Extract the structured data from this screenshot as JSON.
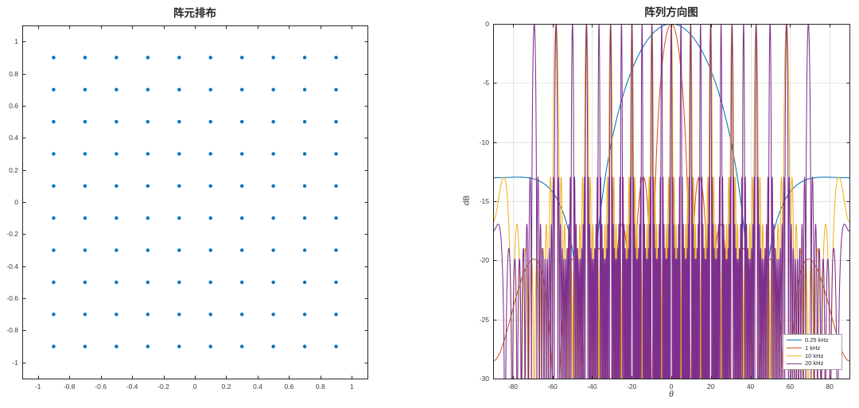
{
  "window": {
    "background": "#ffffff",
    "axis_color": "#262626",
    "grid_color": "#e6e6e6"
  },
  "chart_data": [
    {
      "type": "scatter",
      "title": "阵元排布",
      "xlabel": "",
      "ylabel": "",
      "xlim": [
        -1.1,
        1.1
      ],
      "ylim": [
        -1.1,
        1.1
      ],
      "xticks": [
        -1,
        -0.8,
        -0.6,
        -0.4,
        -0.2,
        0,
        0.2,
        0.4,
        0.6,
        0.8,
        1
      ],
      "xtick_labels": [
        "-1",
        "-0.8",
        "-0.6",
        "-0.4",
        "-0.2",
        "0",
        "0.2",
        "0.4",
        "0.6",
        "0.8",
        "1"
      ],
      "yticks": [
        -1,
        -0.8,
        -0.6,
        -0.4,
        -0.2,
        0,
        0.2,
        0.4,
        0.6,
        0.8,
        1
      ],
      "ytick_labels": [
        "-1",
        "-0.8",
        "-0.6",
        "-0.4",
        "-0.2",
        "0",
        "0.2",
        "0.4",
        "0.6",
        "0.8",
        "1"
      ],
      "grid": false,
      "marker": {
        "shape": "dot",
        "color": "#0072BD",
        "radius_px": 2.2
      },
      "element_grid": {
        "x_values": [
          -0.9,
          -0.7,
          -0.5,
          -0.3,
          -0.1,
          0.1,
          0.3,
          0.5,
          0.7,
          0.9
        ],
        "y_values": [
          -0.9,
          -0.7,
          -0.5,
          -0.3,
          -0.1,
          0.1,
          0.3,
          0.5,
          0.7,
          0.9
        ],
        "description": "100 array elements at every (x,y) combination of x_values × y_values, spacing 0.2"
      }
    },
    {
      "type": "line",
      "title": "阵列方向图",
      "xlabel": "θ",
      "ylabel": "dB",
      "xlim": [
        -90,
        90
      ],
      "ylim": [
        -30,
        0
      ],
      "xticks": [
        -80,
        -60,
        -40,
        -20,
        0,
        20,
        40,
        60,
        80
      ],
      "xtick_labels": [
        "-80",
        "-60",
        "-40",
        "-20",
        "0",
        "20",
        "40",
        "60",
        "80"
      ],
      "yticks": [
        0,
        -5,
        -10,
        -15,
        -20,
        -25,
        -30
      ],
      "ytick_labels": [
        "0",
        "-5",
        "-10",
        "-15",
        "-20",
        "-25",
        "-30"
      ],
      "grid": true,
      "legend": {
        "position": "southeast"
      },
      "generator": {
        "model": "normalized uniform-linear-array factor (broadside cut of the 10×10 grid): AF(θ)=|sin(N·u)/(N·sin(u))|, u=π·d·f/c·sin(θ), plotted as 20·log10(AF), clipped at -30 dB",
        "N": 10,
        "d_m": 0.2,
        "c_mps": 340,
        "theta_range_deg": [
          -90,
          90
        ]
      },
      "series": [
        {
          "label": "0.25 kHz",
          "freq_hz": 250,
          "color": "#0072BD",
          "key_features": {
            "peak_db": 0,
            "peak_theta_deg": 0,
            "first_null_theta_deg": 42.8,
            "edge_plateau_db": -13
          }
        },
        {
          "label": "1 kHz",
          "freq_hz": 1000,
          "color": "#D95319",
          "key_features": {
            "peak_db": 0,
            "main_lobe_null_theta_deg": 9.8,
            "first_sidelobe_db": -13,
            "far_sidelobe_db": -20
          }
        },
        {
          "label": "10 kHz",
          "freq_hz": 10000,
          "color": "#EDB120",
          "key_features": {
            "grating_lobe_db": 0,
            "grating_lobe_thetas_deg": [
              0,
              9.8,
              19.9,
              30.7,
              42.8,
              58.2
            ]
          }
        },
        {
          "label": "20 kHz",
          "freq_hz": 20000,
          "color": "#7E2F8E",
          "key_features": {
            "grating_lobe_db": 0,
            "grating_lobe_thetas_deg": [
              0,
              4.9,
              9.8,
              14.8,
              19.9,
              25.4,
              30.7,
              36.6,
              42.8,
              49.9,
              58.2,
              69.3
            ]
          }
        }
      ]
    }
  ]
}
